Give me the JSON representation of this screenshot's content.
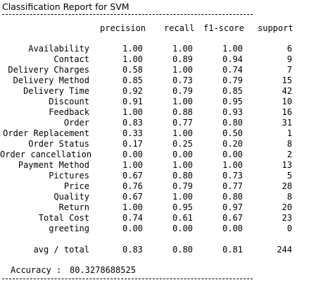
{
  "title": "Classification Report for SVM",
  "headers": [
    "precision",
    "recall",
    "f1-score",
    "support"
  ],
  "rows": [
    {
      "label": "Availability",
      "precision": "1.00",
      "recall": "1.00",
      "f1": "1.00",
      "support": "6"
    },
    {
      "label": "Contact",
      "precision": "1.00",
      "recall": "0.89",
      "f1": "0.94",
      "support": "9"
    },
    {
      "label": "Delivery Charges",
      "precision": "0.58",
      "recall": "1.00",
      "f1": "0.74",
      "support": "7"
    },
    {
      "label": "Delivery Method",
      "precision": "0.85",
      "recall": "0.73",
      "f1": "0.79",
      "support": "15"
    },
    {
      "label": "Delivery Time",
      "precision": "0.92",
      "recall": "0.79",
      "f1": "0.85",
      "support": "42"
    },
    {
      "label": "Discount",
      "precision": "0.91",
      "recall": "1.00",
      "f1": "0.95",
      "support": "10"
    },
    {
      "label": "Feedback",
      "precision": "1.00",
      "recall": "0.88",
      "f1": "0.93",
      "support": "16"
    },
    {
      "label": "Order",
      "precision": "0.83",
      "recall": "0.77",
      "f1": "0.80",
      "support": "31"
    },
    {
      "label": "Order Replacement",
      "precision": "0.33",
      "recall": "1.00",
      "f1": "0.50",
      "support": "1"
    },
    {
      "label": "Order Status",
      "precision": "0.17",
      "recall": "0.25",
      "f1": "0.20",
      "support": "8"
    },
    {
      "label": "Order cancellation",
      "precision": "0.00",
      "recall": "0.00",
      "f1": "0.00",
      "support": "2"
    },
    {
      "label": "Payment Method",
      "precision": "1.00",
      "recall": "1.00",
      "f1": "1.00",
      "support": "13"
    },
    {
      "label": "Pictures",
      "precision": "0.67",
      "recall": "0.80",
      "f1": "0.73",
      "support": "5"
    },
    {
      "label": "Price",
      "precision": "0.76",
      "recall": "0.79",
      "f1": "0.77",
      "support": "28"
    },
    {
      "label": "Quality",
      "precision": "0.67",
      "recall": "1.00",
      "f1": "0.80",
      "support": "8"
    },
    {
      "label": "Return",
      "precision": "1.00",
      "recall": "0.95",
      "f1": "0.97",
      "support": "20"
    },
    {
      "label": "Total Cost",
      "precision": "0.74",
      "recall": "0.61",
      "f1": "0.67",
      "support": "23"
    },
    {
      "label": "greeting",
      "precision": "0.00",
      "recall": "0.00",
      "f1": "0.00",
      "support": "0"
    }
  ],
  "avg_total": {
    "label": "avg / total",
    "precision": "0.83",
    "recall": "0.80",
    "f1": "0.81",
    "support": "244"
  },
  "accuracy": {
    "label": "Accuracy :",
    "value": "80.3278688525"
  }
}
